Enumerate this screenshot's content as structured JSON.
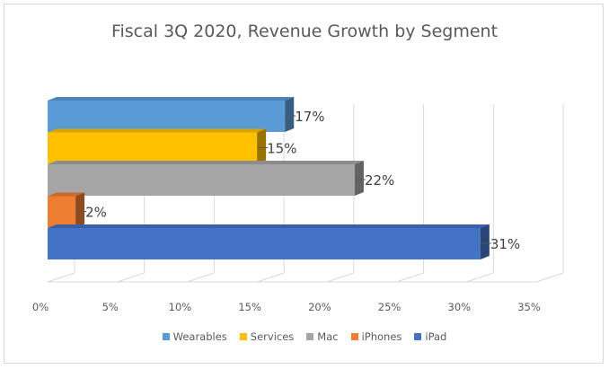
{
  "chart_data": {
    "type": "bar",
    "orientation": "horizontal",
    "three_d": true,
    "title": "Fiscal 3Q 2020, Revenue Growth by Segment",
    "xlabel": "",
    "ylabel": "",
    "xlim": [
      0,
      35
    ],
    "x_ticks": [
      "0%",
      "5%",
      "10%",
      "15%",
      "20%",
      "25%",
      "30%",
      "35%"
    ],
    "grid": true,
    "legend_position": "bottom",
    "series": [
      {
        "name": "Wearables",
        "value": 17,
        "label": "17%",
        "color": "#5B9BD5"
      },
      {
        "name": "Services",
        "value": 15,
        "label": "15%",
        "color": "#FFC000"
      },
      {
        "name": "Mac",
        "value": 22,
        "label": "22%",
        "color": "#A5A5A5"
      },
      {
        "name": "iPhones",
        "value": 2,
        "label": "2%",
        "color": "#ED7D31"
      },
      {
        "name": "iPad",
        "value": 31,
        "label": "31%",
        "color": "#4472C4"
      }
    ]
  }
}
